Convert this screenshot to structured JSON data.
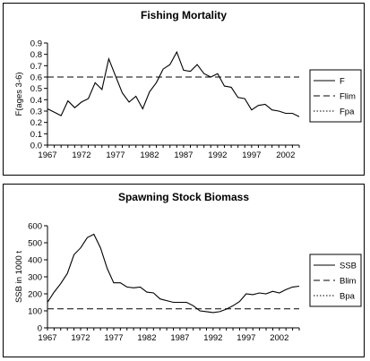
{
  "chart_data": [
    {
      "type": "line",
      "title": "Fishing Mortality",
      "xlabel": "",
      "ylabel": "F(ages 3-6)",
      "xlim": [
        1967,
        2004
      ],
      "ylim": [
        0,
        0.9
      ],
      "grid": false,
      "legend_position": "right",
      "x_ticks": [
        "1967",
        "1972",
        "1977",
        "1982",
        "1987",
        "1992",
        "1997",
        "2002"
      ],
      "y_ticks": [
        "0.0",
        "0.1",
        "0.2",
        "0.3",
        "0.4",
        "0.5",
        "0.6",
        "0.7",
        "0.8",
        "0.9"
      ],
      "series": [
        {
          "name": "F",
          "style": "solid",
          "x": [
            1967,
            1968,
            1969,
            1970,
            1971,
            1972,
            1973,
            1974,
            1975,
            1976,
            1977,
            1978,
            1979,
            1980,
            1981,
            1982,
            1983,
            1984,
            1985,
            1986,
            1987,
            1988,
            1989,
            1990,
            1991,
            1992,
            1993,
            1994,
            1995,
            1996,
            1997,
            1998,
            1999,
            2000,
            2001,
            2002,
            2003,
            2004
          ],
          "values": [
            0.32,
            0.29,
            0.26,
            0.39,
            0.33,
            0.38,
            0.41,
            0.55,
            0.49,
            0.76,
            0.61,
            0.46,
            0.38,
            0.43,
            0.32,
            0.47,
            0.55,
            0.67,
            0.71,
            0.82,
            0.66,
            0.65,
            0.71,
            0.63,
            0.6,
            0.63,
            0.52,
            0.51,
            0.42,
            0.41,
            0.31,
            0.35,
            0.36,
            0.31,
            0.3,
            0.28,
            0.28,
            0.25
          ]
        },
        {
          "name": "Flim",
          "style": "dashed",
          "constant": 0.6
        },
        {
          "name": "Fpa",
          "style": "dotted",
          "constant": null
        }
      ]
    },
    {
      "type": "line",
      "title": "Spawning Stock Biomass",
      "xlabel": "",
      "ylabel": "SSB in 1000 t",
      "xlim": [
        1967,
        2005
      ],
      "ylim": [
        0,
        600
      ],
      "grid": false,
      "legend_position": "right",
      "x_ticks": [
        "1967",
        "1972",
        "1977",
        "1982",
        "1987",
        "1992",
        "1997",
        "2002"
      ],
      "y_ticks": [
        "0",
        "100",
        "200",
        "300",
        "400",
        "500",
        "600"
      ],
      "series": [
        {
          "name": "SSB",
          "style": "solid",
          "x": [
            1967,
            1968,
            1969,
            1970,
            1971,
            1972,
            1973,
            1974,
            1975,
            1976,
            1977,
            1978,
            1979,
            1980,
            1981,
            1982,
            1983,
            1984,
            1985,
            1986,
            1987,
            1988,
            1989,
            1990,
            1991,
            1992,
            1993,
            1994,
            1995,
            1996,
            1997,
            1998,
            1999,
            2000,
            2001,
            2002,
            2003,
            2004,
            2005
          ],
          "values": [
            150,
            210,
            260,
            320,
            430,
            470,
            530,
            550,
            470,
            350,
            265,
            265,
            240,
            235,
            240,
            210,
            205,
            170,
            160,
            150,
            150,
            150,
            130,
            100,
            95,
            90,
            95,
            110,
            130,
            155,
            200,
            195,
            205,
            200,
            215,
            205,
            225,
            240,
            245
          ]
        },
        {
          "name": "Blim",
          "style": "dashed",
          "constant": 112
        },
        {
          "name": "Bpa",
          "style": "dotted",
          "constant": null
        }
      ]
    }
  ]
}
